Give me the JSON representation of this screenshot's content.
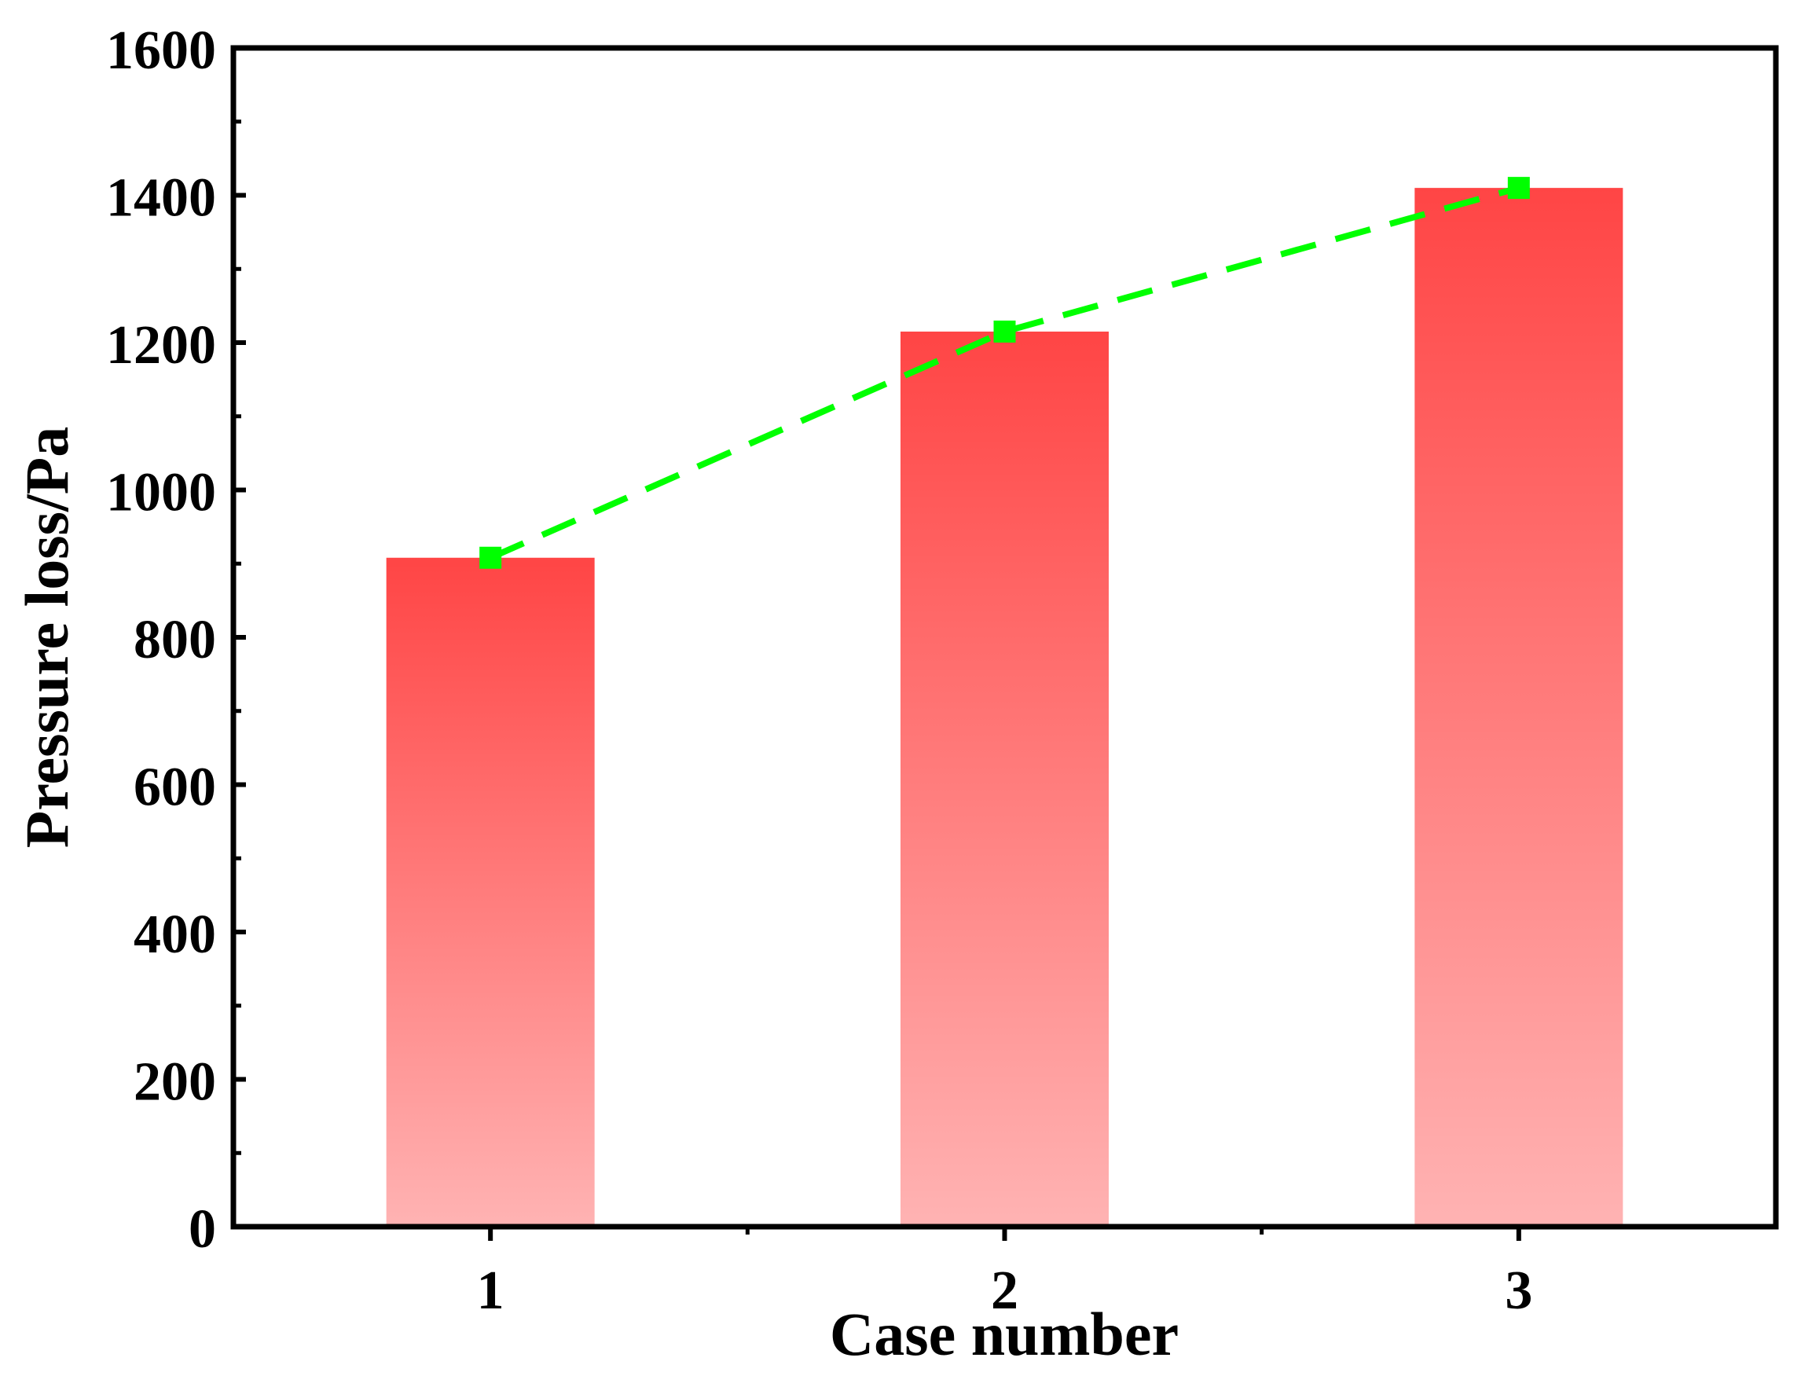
{
  "chart_data": {
    "type": "bar",
    "categories": [
      "1",
      "2",
      "3"
    ],
    "series": [
      {
        "values": [
          908,
          1215,
          1410
        ]
      }
    ],
    "line_overlay": {
      "values": [
        908,
        1215,
        1410
      ],
      "style": "dashed",
      "marker": "square"
    },
    "title": "",
    "xlabel": "Case number",
    "ylabel": "Pressure loss/Pa",
    "ylim": [
      0,
      1600
    ],
    "y_ticks": [
      "0",
      "200",
      "400",
      "600",
      "800",
      "1000",
      "1200",
      "1400",
      "1600"
    ],
    "grid": false,
    "legend": "none",
    "colors": {
      "bar_top": "#ff4545",
      "bar_bottom": "#ffb3b3",
      "line": "#00ff00",
      "axis": "#000000"
    }
  }
}
